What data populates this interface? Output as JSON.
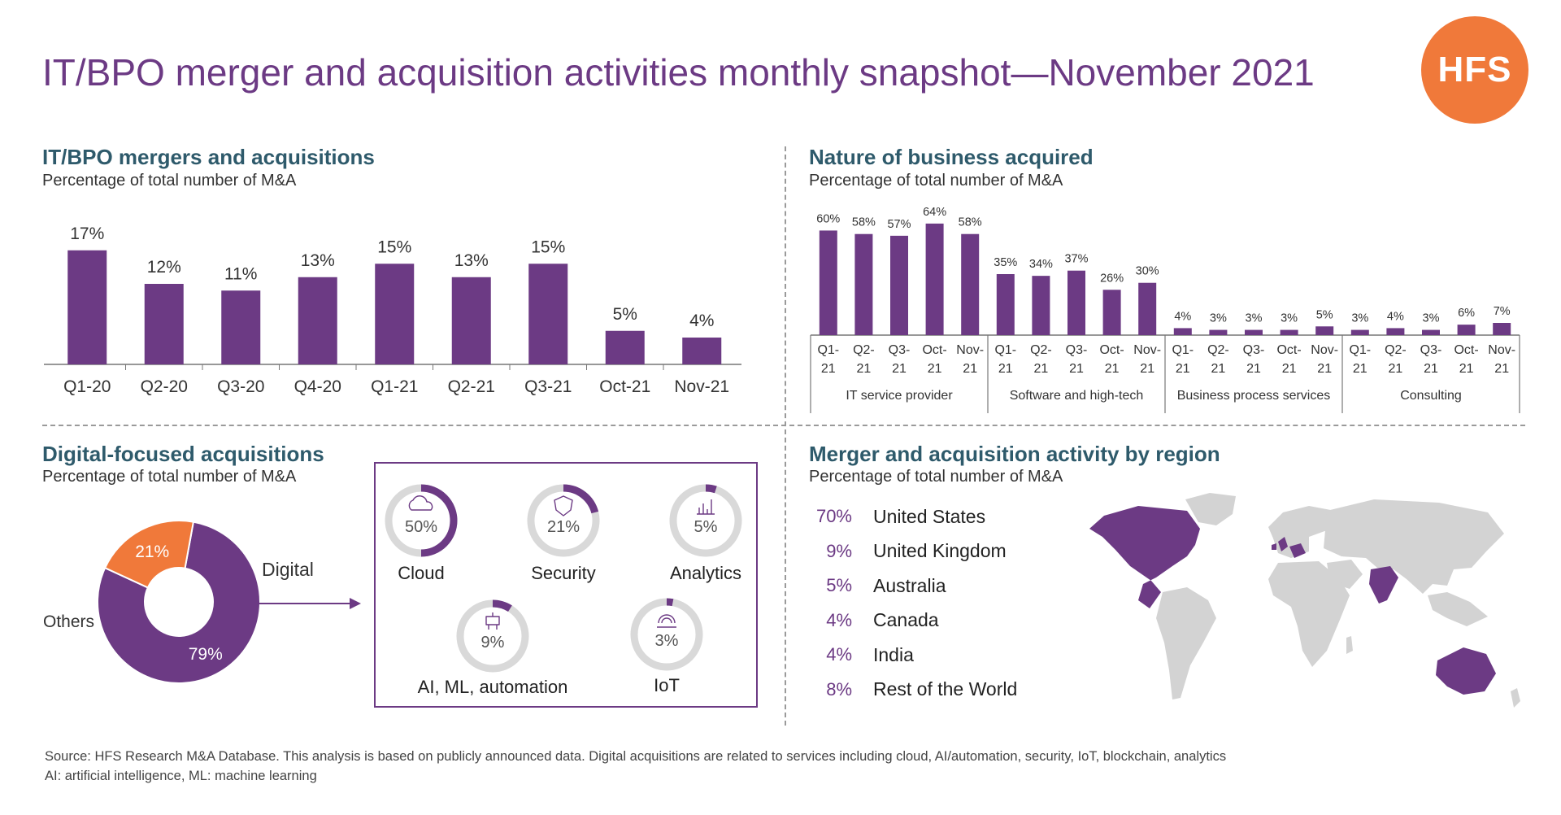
{
  "title": "IT/BPO merger and acquisition activities monthly snapshot—November 2021",
  "logo_text": "HFS",
  "colors": {
    "purple": "#6c3a84",
    "orange": "#f0793a",
    "teal": "#2e5a6b",
    "grey_track": "#d9d9d9",
    "map_grey": "#d3d3d3"
  },
  "panels": {
    "ma": {
      "title": "IT/BPO mergers and acquisitions",
      "subtitle": "Percentage of total number of M&A"
    },
    "nature": {
      "title": "Nature of business acquired",
      "subtitle": "Percentage of total number of M&A"
    },
    "digital": {
      "title": "Digital-focused acquisitions",
      "subtitle": "Percentage of total number of M&A"
    },
    "region": {
      "title": "Merger and acquisition activity by region",
      "subtitle": "Percentage of total number of M&A"
    }
  },
  "chart_data": [
    {
      "type": "bar",
      "categories": [
        "Q1-20",
        "Q2-20",
        "Q3-20",
        "Q4-20",
        "Q1-21",
        "Q2-21",
        "Q3-21",
        "Oct-21",
        "Nov-21"
      ],
      "values": [
        17,
        12,
        11,
        13,
        15,
        13,
        15,
        5,
        4
      ],
      "value_labels": [
        "17%",
        "12%",
        "11%",
        "13%",
        "15%",
        "13%",
        "15%",
        "5%",
        "4%"
      ],
      "ylim": [
        0,
        20
      ],
      "grid": false
    },
    {
      "type": "bar",
      "groups": [
        "IT service provider",
        "Software and high-tech",
        "Business process services",
        "Consulting"
      ],
      "periods": [
        [
          "Q1-",
          "21"
        ],
        [
          "Q2-",
          "21"
        ],
        [
          "Q3-",
          "21"
        ],
        [
          "Oct-",
          "21"
        ],
        [
          "Nov-",
          "21"
        ]
      ],
      "series": [
        {
          "values": [
            60,
            58,
            57,
            64,
            58
          ],
          "labels": [
            "60%",
            "58%",
            "57%",
            "64%",
            "58%"
          ]
        },
        {
          "values": [
            35,
            34,
            37,
            26,
            30
          ],
          "labels": [
            "35%",
            "34%",
            "37%",
            "26%",
            "30%"
          ]
        },
        {
          "values": [
            4,
            3,
            3,
            3,
            5
          ],
          "labels": [
            "4%",
            "3%",
            "3%",
            "3%",
            "5%"
          ]
        },
        {
          "values": [
            3,
            4,
            3,
            6,
            7
          ],
          "labels": [
            "3%",
            "4%",
            "3%",
            "6%",
            "7%"
          ]
        }
      ],
      "ylim": [
        0,
        70
      ],
      "grid": false
    },
    {
      "type": "pie",
      "donut": true,
      "slices": [
        {
          "name": "Digital",
          "value": 79,
          "label": "79%"
        },
        {
          "name": "Others",
          "value": 21,
          "label": "21%"
        }
      ]
    },
    {
      "type": "pie",
      "donut": true,
      "small_multiples": [
        {
          "name": "Cloud",
          "value": 50,
          "label": "50%",
          "icon": "cloud-icon"
        },
        {
          "name": "Security",
          "value": 21,
          "label": "21%",
          "icon": "shield-icon"
        },
        {
          "name": "Analytics",
          "value": 5,
          "label": "5%",
          "icon": "analytics-icon"
        },
        {
          "name": "AI, ML, automation",
          "value": 9,
          "label": "9%",
          "icon": "robot-icon"
        },
        {
          "name": "IoT",
          "value": 3,
          "label": "3%",
          "icon": "iot-icon"
        }
      ]
    },
    {
      "type": "table",
      "rows": [
        {
          "pct": "70%",
          "region": "United States"
        },
        {
          "pct": "9%",
          "region": "United Kingdom"
        },
        {
          "pct": "5%",
          "region": "Australia"
        },
        {
          "pct": "4%",
          "region": "Canada"
        },
        {
          "pct": "4%",
          "region": "India"
        },
        {
          "pct": "8%",
          "region": "Rest of the World"
        }
      ]
    }
  ],
  "source": {
    "line1": "Source: HFS Research M&A Database. This analysis is based on publicly announced data. Digital acquisitions are related to services including cloud, AI/automation, security, IoT, blockchain, analytics",
    "line2": "AI: artificial intelligence, ML: machine learning"
  }
}
